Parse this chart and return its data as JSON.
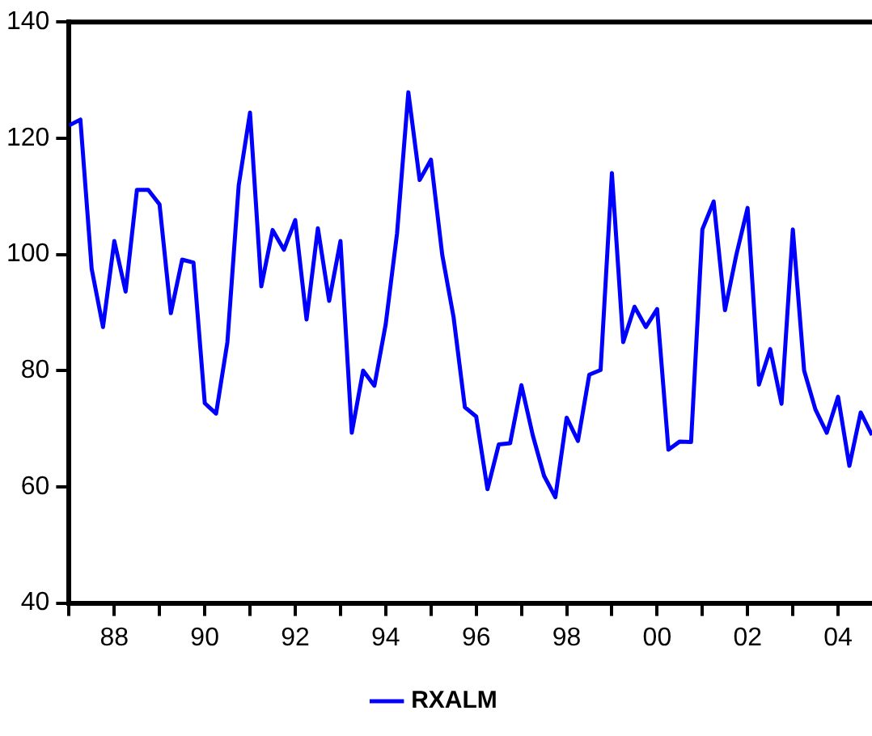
{
  "chart_data": {
    "type": "line",
    "legend": "bottom",
    "grid": false,
    "marker": "none",
    "line_style": "solid",
    "xlim": [
      1987,
      2004.75
    ],
    "xticks": [
      {
        "value": 1987,
        "label": null
      },
      {
        "value": 1988,
        "label": "88"
      },
      {
        "value": 1989,
        "label": null
      },
      {
        "value": 1990,
        "label": "90"
      },
      {
        "value": 1991,
        "label": null
      },
      {
        "value": 1992,
        "label": "92"
      },
      {
        "value": 1993,
        "label": null
      },
      {
        "value": 1994,
        "label": "94"
      },
      {
        "value": 1995,
        "label": null
      },
      {
        "value": 1996,
        "label": "96"
      },
      {
        "value": 1997,
        "label": null
      },
      {
        "value": 1998,
        "label": "98"
      },
      {
        "value": 1999,
        "label": null
      },
      {
        "value": 2000,
        "label": "00"
      },
      {
        "value": 2001,
        "label": null
      },
      {
        "value": 2002,
        "label": "02"
      },
      {
        "value": 2003,
        "label": null
      },
      {
        "value": 2004,
        "label": "04"
      }
    ],
    "ylim": [
      40,
      140
    ],
    "yticks": [
      40,
      60,
      80,
      100,
      120,
      140
    ],
    "x": [
      1987,
      1987.25,
      1987.5,
      1987.75,
      1988,
      1988.25,
      1988.5,
      1988.75,
      1989,
      1989.25,
      1989.5,
      1989.75,
      1990,
      1990.25,
      1990.5,
      1990.75,
      1991,
      1991.25,
      1991.5,
      1991.75,
      1992,
      1992.25,
      1992.5,
      1992.75,
      1993,
      1993.25,
      1993.5,
      1993.75,
      1994,
      1994.25,
      1994.5,
      1994.75,
      1995,
      1995.25,
      1995.5,
      1995.75,
      1996,
      1996.25,
      1996.5,
      1996.75,
      1997,
      1997.25,
      1997.5,
      1997.75,
      1998,
      1998.25,
      1998.5,
      1998.75,
      1999,
      1999.25,
      1999.5,
      1999.75,
      2000,
      2000.25,
      2000.5,
      2000.75,
      2001,
      2001.25,
      2001.5,
      2001.75,
      2002,
      2002.25,
      2002.5,
      2002.75,
      2003,
      2003.25,
      2003.5,
      2003.75,
      2004,
      2004.25,
      2004.5,
      2004.75
    ],
    "series": [
      {
        "name": "RXALM",
        "color": "#0000ff",
        "values": [
          122.2,
          123.2,
          97.5,
          87.5,
          102.3,
          93.6,
          111.1,
          111.1,
          108.6,
          89.9,
          99.1,
          98.6,
          74.4,
          72.6,
          84.9,
          111.9,
          124.4,
          94.5,
          104.2,
          100.8,
          105.9,
          88.8,
          104.5,
          92.0,
          102.3,
          69.3,
          80.0,
          77.4,
          88.0,
          103.6,
          127.9,
          112.8,
          116.3,
          99.9,
          89.2,
          73.7,
          72.1,
          59.6,
          67.3,
          67.5,
          77.5,
          68.9,
          61.9,
          58.2,
          71.9,
          67.9,
          79.3,
          80.1,
          114.0,
          84.9,
          91.0,
          87.5,
          90.6,
          66.4,
          67.8,
          67.7,
          104.3,
          109.1,
          90.4,
          99.9,
          108.0,
          77.6,
          83.7,
          74.3,
          104.3,
          80.0,
          73.3,
          69.3,
          75.5,
          63.6,
          72.8,
          68.9
        ]
      }
    ]
  }
}
